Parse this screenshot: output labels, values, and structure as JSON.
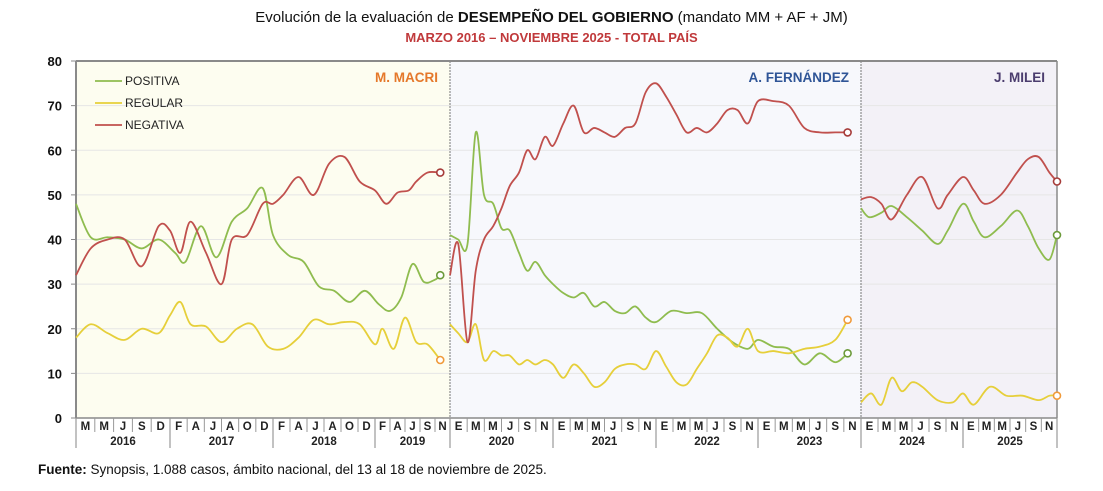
{
  "chart_data": {
    "type": "line",
    "title": "Evolución de la evaluación de DESEMPEÑO DEL GOBIERNO (mandato MM + AF + JM)",
    "title_parts": {
      "normal_1": "Evolución de la evaluación de ",
      "bold": "DESEMPEÑO DEL GOBIERNO",
      "normal_2": " (mandato MM + AF + JM)"
    },
    "subtitle": "MARZO 2016 – NOVIEMBRE 2025 - TOTAL PAÍS",
    "xlabel": "",
    "ylabel": "",
    "ylim": [
      0,
      80
    ],
    "yticks": [
      0,
      10,
      20,
      30,
      40,
      50,
      60,
      70,
      80
    ],
    "grid": true,
    "legend_position": "top-left",
    "periods": [
      {
        "label": "M. MACRI",
        "start": 2016.17,
        "end": 2020.0,
        "color": "#fdfdf0",
        "label_color": "#e5782a"
      },
      {
        "label": "A. FERNÁNDEZ",
        "start": 2020.0,
        "end": 2024.0,
        "color": "#f7f8fc",
        "label_color": "#2f5597"
      },
      {
        "label": "J. MILEI",
        "start": 2024.0,
        "end": 2025.87,
        "color": "#f3f1f7",
        "label_color": "#4b3d6e"
      }
    ],
    "x_axis": {
      "years": [
        {
          "year": "2016",
          "months": [
            "M",
            "M",
            "J",
            "S",
            "D"
          ]
        },
        {
          "year": "2017",
          "months": [
            "F",
            "A",
            "J",
            "A",
            "O",
            "D"
          ]
        },
        {
          "year": "2018",
          "months": [
            "F",
            "A",
            "J",
            "A",
            "O",
            "D"
          ]
        },
        {
          "year": "2019",
          "months": [
            "F",
            "A",
            "J",
            "S",
            "N"
          ]
        },
        {
          "year": "2020",
          "months": [
            "E",
            "M",
            "M",
            "J",
            "S",
            "N"
          ]
        },
        {
          "year": "2021",
          "months": [
            "E",
            "M",
            "M",
            "J",
            "S",
            "N"
          ]
        },
        {
          "year": "2022",
          "months": [
            "E",
            "M",
            "M",
            "J",
            "S",
            "N"
          ]
        },
        {
          "year": "2023",
          "months": [
            "E",
            "M",
            "M",
            "J",
            "S",
            "N"
          ]
        },
        {
          "year": "2024",
          "months": [
            "E",
            "M",
            "M",
            "J",
            "S",
            "N"
          ]
        },
        {
          "year": "2025",
          "months": [
            "E",
            "M",
            "M",
            "J",
            "S",
            "N"
          ]
        }
      ]
    },
    "series": [
      {
        "name": "POSITIVA",
        "color": "#8fbc4f",
        "marker_color": "#6b9a3a",
        "segments": [
          {
            "x": [
              2016.17,
              2016.3,
              2016.45,
              2016.6,
              2016.75,
              2016.9,
              2017.05,
              2017.15,
              2017.3,
              2017.45,
              2017.6,
              2017.75,
              2017.9,
              2018.0,
              2018.15,
              2018.3,
              2018.45,
              2018.6,
              2018.75,
              2018.9,
              2019.05,
              2019.2,
              2019.35,
              2019.5,
              2019.65,
              2019.8,
              2019.87
            ],
            "y": [
              48,
              40.5,
              40.5,
              40,
              38,
              40,
              37,
              35,
              43,
              36,
              44,
              47,
              51.5,
              41,
              36.5,
              35,
              29.5,
              28.5,
              26,
              28.5,
              25.5,
              24,
              27,
              34.5,
              30.5,
              31,
              32
            ]
          },
          {
            "x": [
              2020.0,
              2020.08,
              2020.17,
              2020.25,
              2020.33,
              2020.42,
              2020.5,
              2020.58,
              2020.67,
              2020.75,
              2020.83,
              2020.92,
              2021.0,
              2021.1,
              2021.2,
              2021.3,
              2021.4,
              2021.5,
              2021.6,
              2021.7,
              2021.8,
              2021.9,
              2022.0,
              2022.15,
              2022.3,
              2022.45,
              2022.6,
              2022.75,
              2022.9,
              2023.0,
              2023.15,
              2023.3,
              2023.45,
              2023.6,
              2023.75,
              2023.87
            ],
            "y": [
              41,
              40,
              39,
              64,
              50,
              48,
              42.5,
              42,
              37,
              33,
              35,
              32,
              30,
              28,
              27,
              28,
              25,
              26,
              24,
              23.5,
              25,
              22.5,
              21.5,
              24,
              23.5,
              23.5,
              20,
              17,
              15.5,
              17.5,
              16,
              15.5,
              12,
              14.5,
              12.5,
              14.5
            ]
          },
          {
            "x": [
              2024.0,
              2024.08,
              2024.2,
              2024.3,
              2024.45,
              2024.6,
              2024.75,
              2024.85,
              2025.0,
              2025.1,
              2025.2,
              2025.35,
              2025.5,
              2025.6,
              2025.7,
              2025.8,
              2025.87
            ],
            "y": [
              47,
              45,
              46,
              47.5,
              45,
              42,
              39,
              42,
              48,
              44,
              40.5,
              43,
              46.5,
              43,
              38,
              35.5,
              41
            ]
          }
        ],
        "last_values": [
          32,
          14,
          41
        ]
      },
      {
        "name": "REGULAR",
        "color": "#e6cf3a",
        "marker_color": "#f09a3a",
        "segments": [
          {
            "x": [
              2016.17,
              2016.3,
              2016.45,
              2016.6,
              2016.75,
              2016.9,
              2017.0,
              2017.1,
              2017.2,
              2017.35,
              2017.5,
              2017.65,
              2017.8,
              2017.95,
              2018.1,
              2018.25,
              2018.4,
              2018.55,
              2018.7,
              2018.85,
              2019.0,
              2019.1,
              2019.25,
              2019.4,
              2019.55,
              2019.7,
              2019.87
            ],
            "y": [
              18,
              21,
              19,
              17.5,
              20,
              19,
              23,
              26,
              21,
              20.5,
              17,
              20,
              21,
              16,
              15.5,
              18,
              22,
              21,
              21.5,
              21,
              16.5,
              20,
              15.5,
              22.5,
              17,
              16.5,
              13
            ]
          },
          {
            "x": [
              2020.0,
              2020.08,
              2020.17,
              2020.25,
              2020.33,
              2020.42,
              2020.5,
              2020.58,
              2020.67,
              2020.75,
              2020.83,
              2020.92,
              2021.0,
              2021.1,
              2021.2,
              2021.3,
              2021.4,
              2021.5,
              2021.6,
              2021.7,
              2021.8,
              2021.9,
              2022.0,
              2022.1,
              2022.2,
              2022.3,
              2022.4,
              2022.5,
              2022.6,
              2022.7,
              2022.8,
              2022.9,
              2023.0,
              2023.15,
              2023.3,
              2023.45,
              2023.6,
              2023.75,
              2023.87
            ],
            "y": [
              21,
              19,
              17,
              21,
              13,
              15,
              14,
              14,
              12,
              13,
              12,
              13,
              12,
              9,
              12,
              10,
              7,
              8,
              11,
              12,
              12,
              11,
              15,
              11.5,
              8,
              7.5,
              11,
              14.5,
              18.5,
              18,
              16,
              20,
              15,
              15,
              14.5,
              15.5,
              16,
              17.5,
              22
            ]
          },
          {
            "x": [
              2024.0,
              2024.1,
              2024.2,
              2024.3,
              2024.4,
              2024.5,
              2024.6,
              2024.75,
              2024.9,
              2025.0,
              2025.1,
              2025.25,
              2025.4,
              2025.55,
              2025.7,
              2025.8,
              2025.87
            ],
            "y": [
              3.5,
              5.5,
              3,
              9,
              6,
              8,
              7,
              4,
              3.5,
              5.5,
              3,
              7,
              5,
              5,
              4,
              5,
              5
            ]
          }
        ],
        "last_values": [
          13,
          22,
          5
        ]
      },
      {
        "name": "NEGATIVA",
        "color": "#c0504d",
        "marker_color": "#a63c3a",
        "segments": [
          {
            "x": [
              2016.17,
              2016.3,
              2016.45,
              2016.6,
              2016.75,
              2016.9,
              2017.0,
              2017.1,
              2017.2,
              2017.35,
              2017.5,
              2017.6,
              2017.75,
              2017.9,
              2018.0,
              2018.1,
              2018.25,
              2018.4,
              2018.55,
              2018.7,
              2018.85,
              2019.0,
              2019.15,
              2019.3,
              2019.45,
              2019.55,
              2019.7,
              2019.87
            ],
            "y": [
              32,
              38,
              40,
              40,
              34,
              43,
              42,
              37,
              44,
              37,
              30,
              40,
              41,
              48,
              48,
              50,
              54,
              50,
              57,
              58.5,
              53,
              51,
              48,
              50.5,
              51,
              53,
              55,
              55
            ]
          },
          {
            "x": [
              2020.0,
              2020.08,
              2020.17,
              2020.25,
              2020.33,
              2020.42,
              2020.5,
              2020.58,
              2020.67,
              2020.75,
              2020.83,
              2020.92,
              2021.0,
              2021.1,
              2021.2,
              2021.3,
              2021.4,
              2021.5,
              2021.6,
              2021.7,
              2021.8,
              2021.9,
              2022.0,
              2022.1,
              2022.2,
              2022.3,
              2022.4,
              2022.5,
              2022.6,
              2022.7,
              2022.8,
              2022.9,
              2023.0,
              2023.15,
              2023.3,
              2023.45,
              2023.6,
              2023.75,
              2023.87
            ],
            "y": [
              32,
              39,
              17,
              33,
              40,
              43,
              47,
              52,
              55,
              60,
              58,
              63,
              61,
              66,
              70,
              64,
              65,
              64,
              63,
              65,
              66,
              73,
              75,
              72,
              68,
              64,
              65,
              64,
              66,
              69,
              69,
              66,
              71,
              71,
              70,
              65,
              64,
              64,
              64
            ]
          },
          {
            "x": [
              2024.0,
              2024.1,
              2024.2,
              2024.3,
              2024.45,
              2024.6,
              2024.75,
              2024.85,
              2025.0,
              2025.1,
              2025.2,
              2025.35,
              2025.5,
              2025.6,
              2025.7,
              2025.8,
              2025.87
            ],
            "y": [
              49,
              49.5,
              48,
              44.5,
              50,
              54,
              47,
              50,
              54,
              51,
              48,
              50,
              55,
              58,
              58.5,
              55,
              53
            ]
          }
        ],
        "last_values": [
          55,
          64,
          53
        ]
      }
    ]
  },
  "source": {
    "label": "Fuente:",
    "text": " Synopsis, 1.088 casos, ámbito nacional, del 13 al 18 de noviembre de 2025."
  }
}
